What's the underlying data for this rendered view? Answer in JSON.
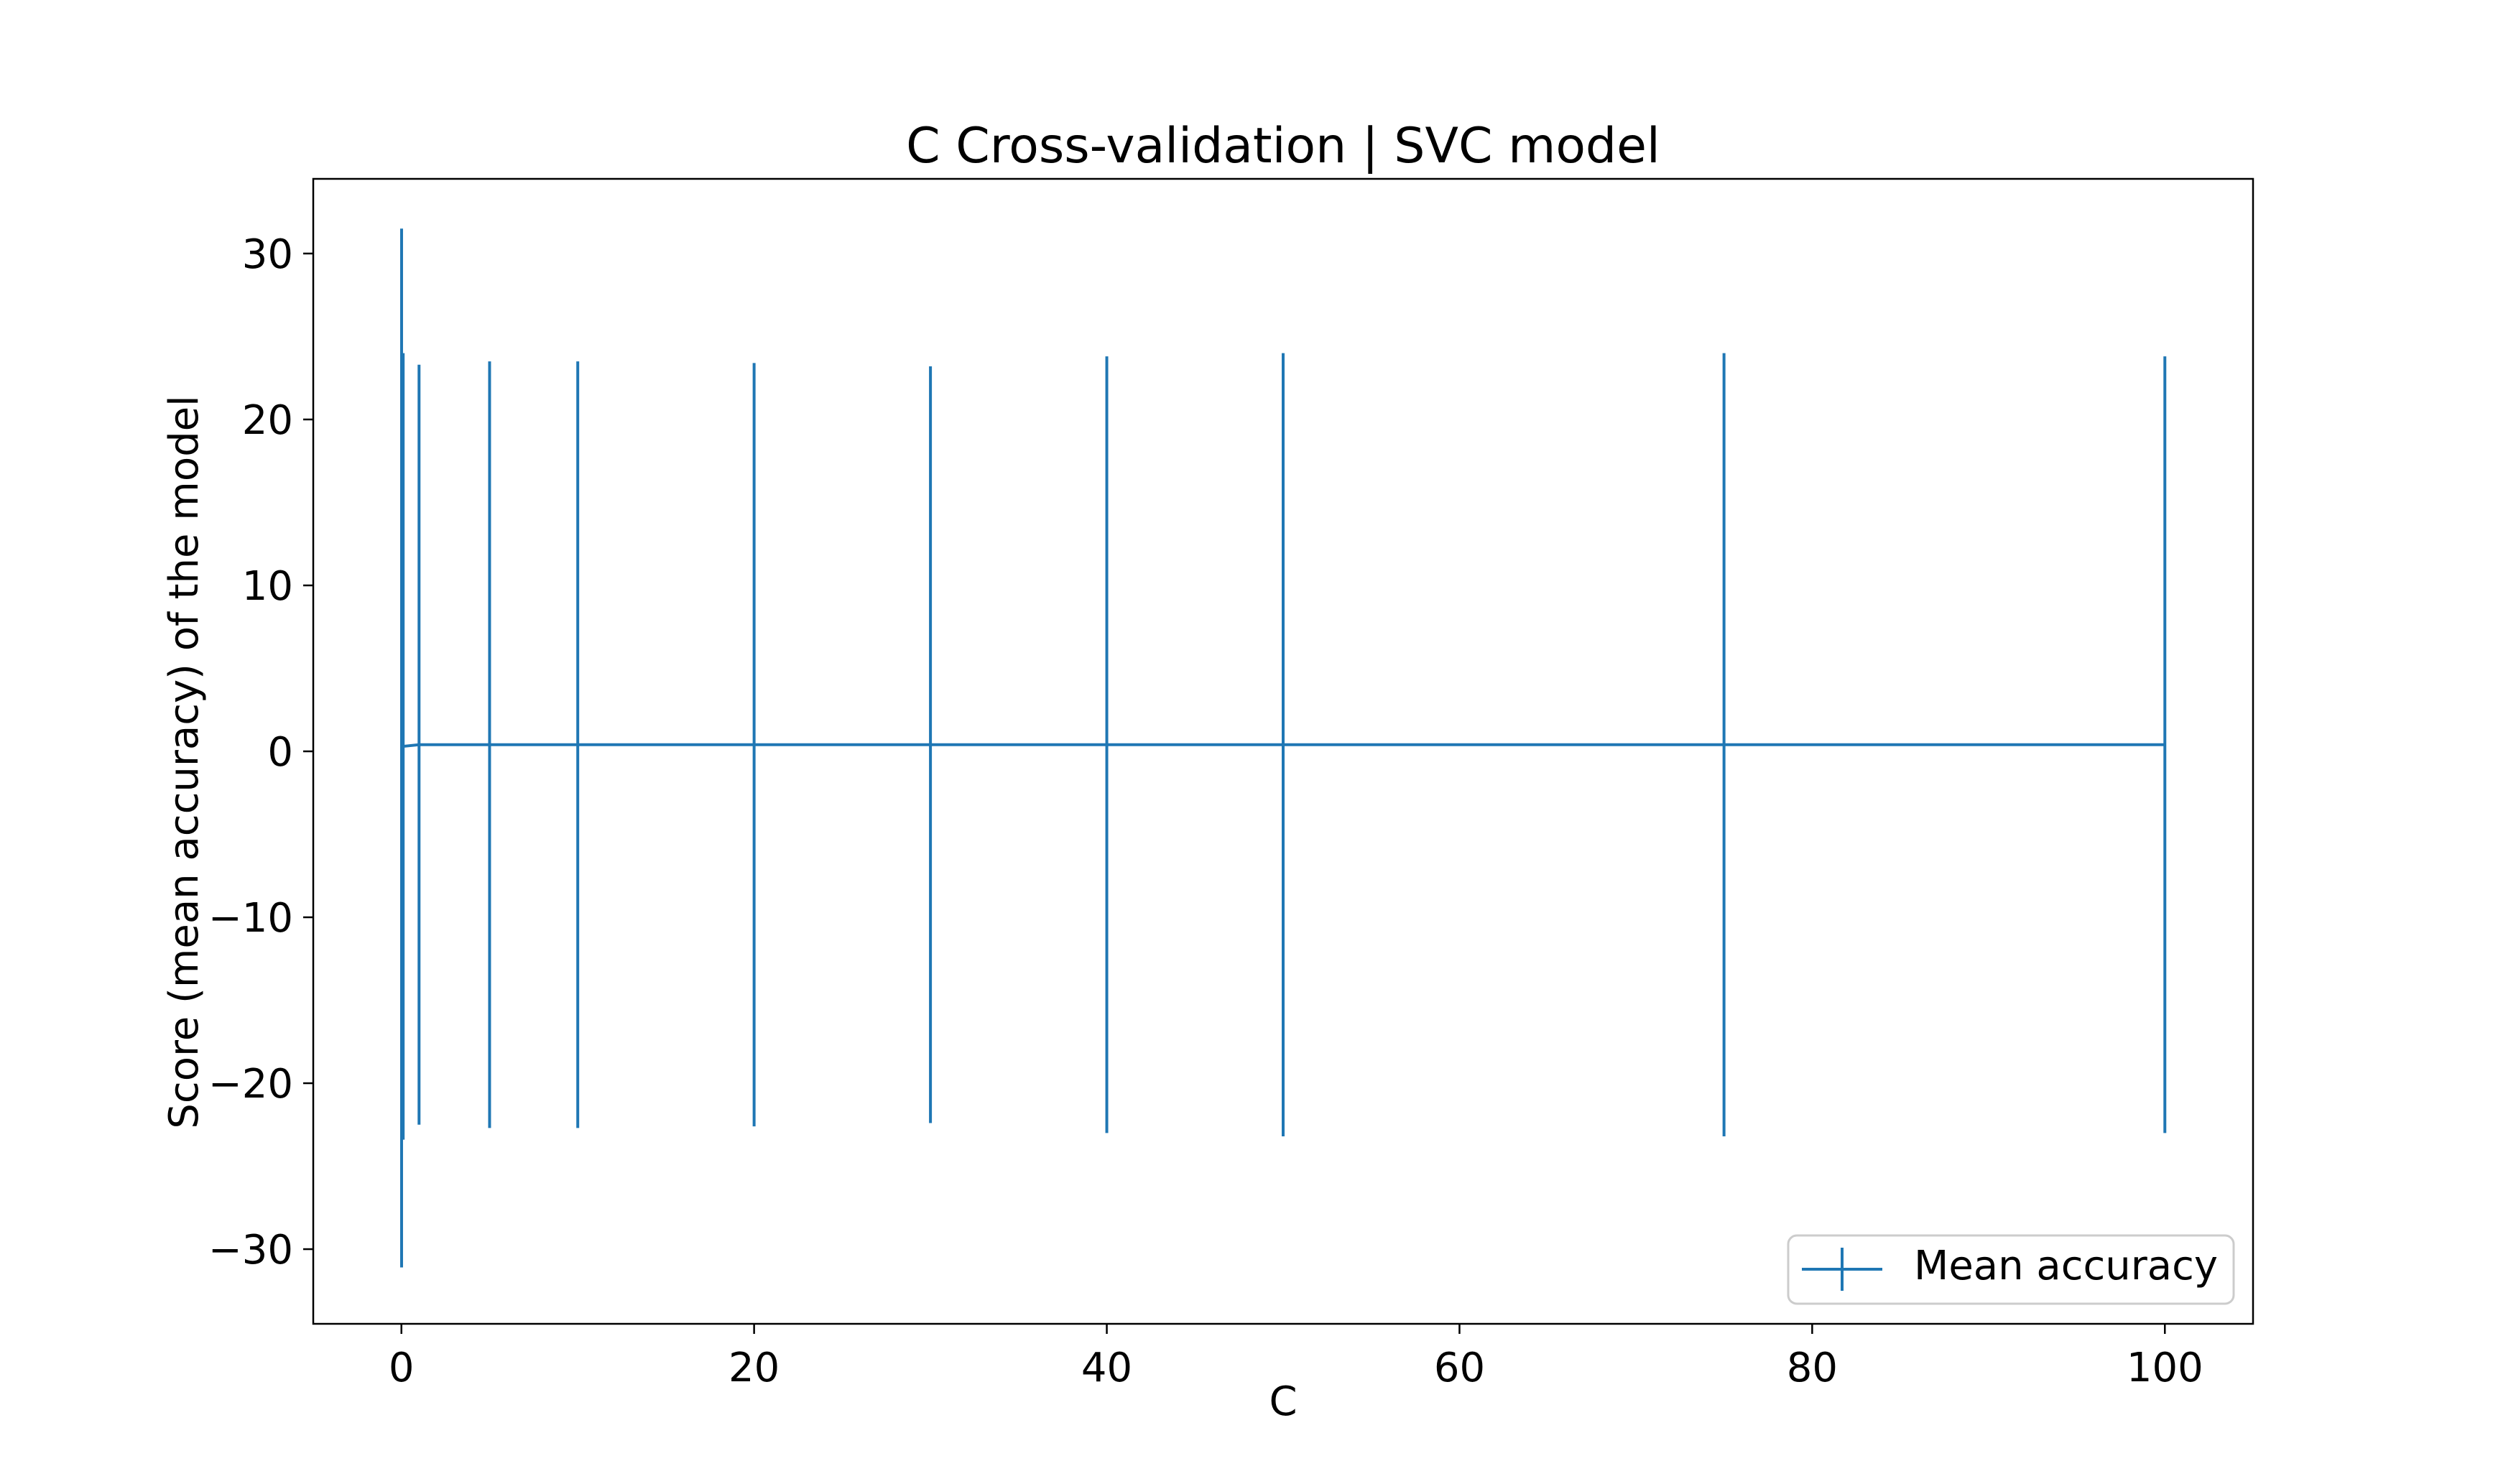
{
  "chart_data": {
    "type": "errorbar",
    "title": "C Cross-validation | SVC model",
    "xlabel": "C",
    "ylabel": "Score (mean accuracy) of the model",
    "xlim": [
      -5,
      105
    ],
    "ylim": [
      -34.5,
      34.5
    ],
    "xticks": [
      0,
      20,
      40,
      60,
      80,
      100
    ],
    "yticks": [
      -30,
      -20,
      -10,
      0,
      10,
      20,
      30
    ],
    "xtick_labels": [
      "0",
      "20",
      "40",
      "60",
      "80",
      "100"
    ],
    "ytick_labels": [
      "−30",
      "−20",
      "−10",
      "0",
      "10",
      "20",
      "30"
    ],
    "grid": false,
    "legend_position": "lower-right",
    "series": [
      {
        "name": "Mean accuracy",
        "color": "#1f77b4",
        "x": [
          0.01,
          0.1,
          1,
          5,
          10,
          20,
          30,
          40,
          50,
          75,
          100
        ],
        "y": [
          0.2,
          0.3,
          0.4,
          0.4,
          0.4,
          0.4,
          0.4,
          0.4,
          0.4,
          0.4,
          0.4
        ],
        "err": [
          31.3,
          23.7,
          22.9,
          23.1,
          23.1,
          23.0,
          22.8,
          23.4,
          23.6,
          23.6,
          23.4
        ]
      }
    ]
  }
}
